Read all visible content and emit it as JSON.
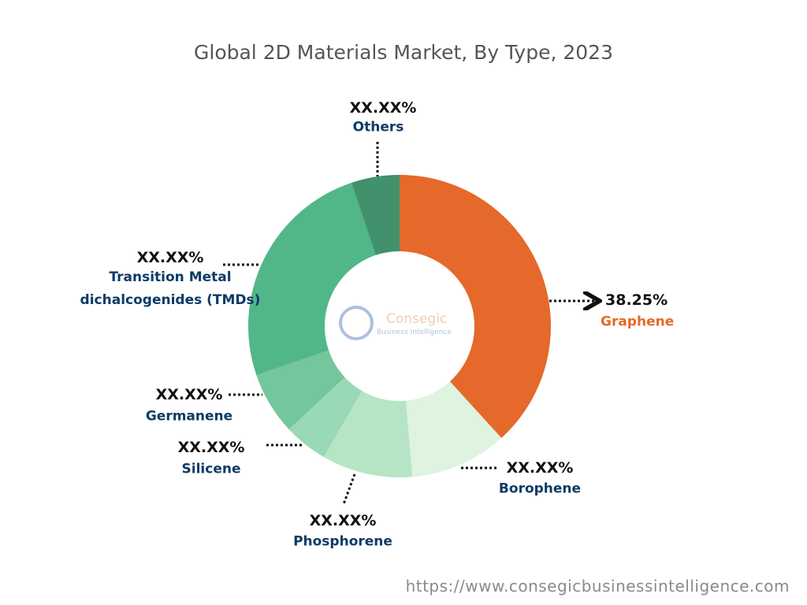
{
  "chart_data": {
    "type": "donut",
    "title": "Global 2D Materials Market, By Type, 2023",
    "categories": [
      "Graphene",
      "Borophene",
      "Phosphorene",
      "Silicene",
      "Germanene",
      "Transition Metal dichalcogenides (TMDs)",
      "Others"
    ],
    "values": [
      38.25,
      10.4,
      9.7,
      4.7,
      6.7,
      25.1,
      5.15
    ],
    "value_labels": [
      "38.25%",
      "XX.XX%",
      "XX.XX%",
      "XX.XX%",
      "XX.XX%",
      "XX.XX%",
      "XX.XX%"
    ],
    "colors": [
      "#e4692a",
      "#dff3e0",
      "#b6e5c6",
      "#99d9b5",
      "#74c69d",
      "#52b788",
      "#40916c"
    ],
    "watermark": [
      "Consegic",
      "Business Intelligence"
    ],
    "source": "https://www.consegicbusinessintelligence.com"
  }
}
